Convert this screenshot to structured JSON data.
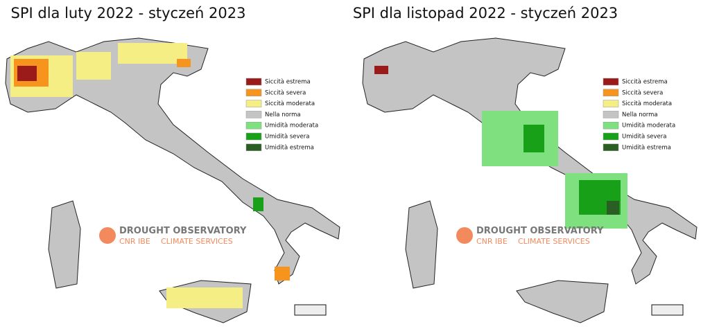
{
  "maps": [
    {
      "title": "SPI dla luty 2022 - styczeń 2023",
      "legend": [
        {
          "label": "Siccità estrema",
          "color": "#9b1b1b"
        },
        {
          "label": "Siccità severa",
          "color": "#f7941d"
        },
        {
          "label": "Siccità moderata",
          "color": "#f5ee84"
        },
        {
          "label": "Nella norma",
          "color": "#c4c4c4"
        },
        {
          "label": "Umidità moderata",
          "color": "#7ee07e"
        },
        {
          "label": "Umidità severa",
          "color": "#18a018"
        },
        {
          "label": "Umidità estrema",
          "color": "#2a5e22"
        }
      ],
      "watermark": {
        "name": "DROUGHT OBSERVATORY",
        "org": "CNR IBE",
        "service": "CLIMATE SERVICES"
      }
    },
    {
      "title": "SPI dla listopad 2022 - styczeń 2023",
      "legend": [
        {
          "label": "Siccità estrema",
          "color": "#9b1b1b"
        },
        {
          "label": "Siccità severa",
          "color": "#f7941d"
        },
        {
          "label": "Siccità moderata",
          "color": "#f5ee84"
        },
        {
          "label": "Nella norma",
          "color": "#c4c4c4"
        },
        {
          "label": "Umidità moderata",
          "color": "#7ee07e"
        },
        {
          "label": "Umidità severa",
          "color": "#18a018"
        },
        {
          "label": "Umidità estrema",
          "color": "#2a5e22"
        }
      ],
      "watermark": {
        "name": "DROUGHT OBSERVATORY",
        "org": "CNR IBE",
        "service": "CLIMATE SERVICES"
      }
    }
  ]
}
